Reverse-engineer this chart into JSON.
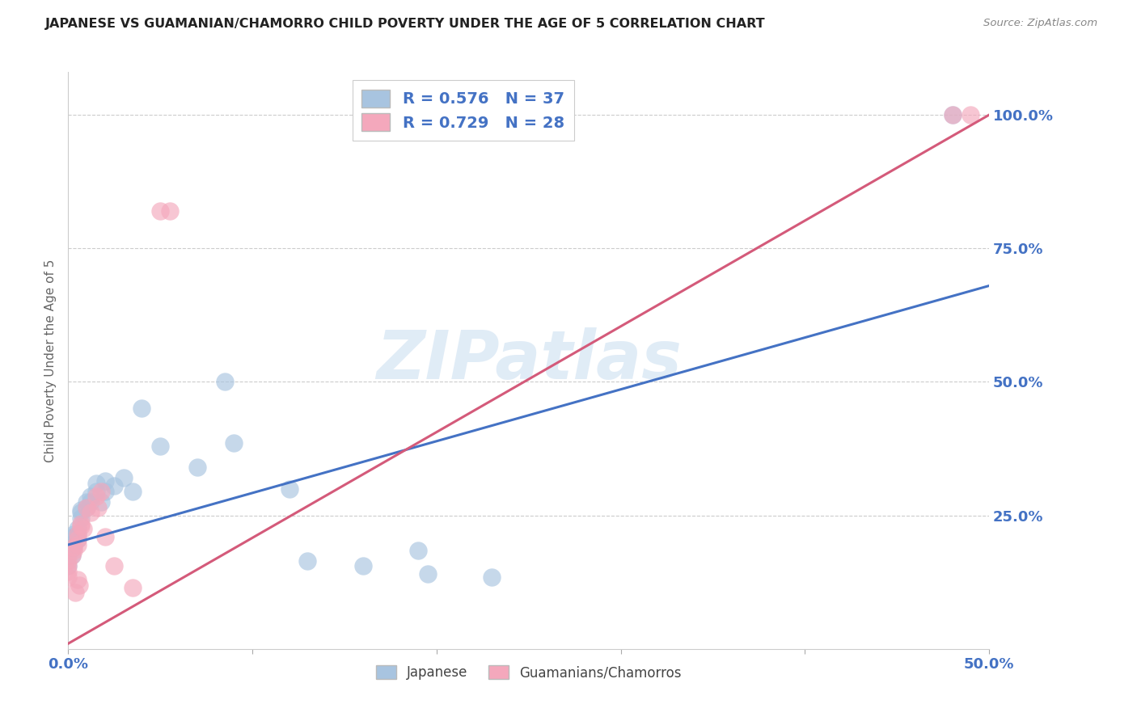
{
  "title": "JAPANESE VS GUAMANIAN/CHAMORRO CHILD POVERTY UNDER THE AGE OF 5 CORRELATION CHART",
  "source": "Source: ZipAtlas.com",
  "ylabel": "Child Poverty Under the Age of 5",
  "xlim": [
    0.0,
    0.5
  ],
  "ylim": [
    0.0,
    1.08
  ],
  "yticks": [
    0.25,
    0.5,
    0.75,
    1.0
  ],
  "ytick_labels": [
    "25.0%",
    "50.0%",
    "75.0%",
    "100.0%"
  ],
  "xticks": [
    0.0,
    0.1,
    0.2,
    0.3,
    0.4,
    0.5
  ],
  "xtick_labels": [
    "0.0%",
    "",
    "",
    "",
    "",
    "50.0%"
  ],
  "japanese_R": 0.576,
  "japanese_N": 37,
  "guam_R": 0.729,
  "guam_N": 28,
  "japanese_color": "#a8c4e0",
  "guam_color": "#f4a8bc",
  "japanese_line_color": "#4472c4",
  "guam_line_color": "#d45a7a",
  "legend_label_1": "Japanese",
  "legend_label_2": "Guamanians/Chamorros",
  "watermark_text": "ZIPatlas",
  "jp_line_x0": 0.0,
  "jp_line_y0": 0.195,
  "jp_line_x1": 0.5,
  "jp_line_y1": 0.68,
  "gm_line_x0": 0.0,
  "gm_line_y0": 0.01,
  "gm_line_x1": 0.5,
  "gm_line_y1": 1.0,
  "japanese_points": [
    [
      0.0,
      0.175
    ],
    [
      0.0,
      0.155
    ],
    [
      0.002,
      0.195
    ],
    [
      0.002,
      0.175
    ],
    [
      0.003,
      0.21
    ],
    [
      0.003,
      0.215
    ],
    [
      0.003,
      0.195
    ],
    [
      0.005,
      0.225
    ],
    [
      0.005,
      0.215
    ],
    [
      0.005,
      0.205
    ],
    [
      0.007,
      0.26
    ],
    [
      0.007,
      0.245
    ],
    [
      0.007,
      0.255
    ],
    [
      0.01,
      0.265
    ],
    [
      0.01,
      0.275
    ],
    [
      0.012,
      0.275
    ],
    [
      0.012,
      0.285
    ],
    [
      0.015,
      0.295
    ],
    [
      0.015,
      0.31
    ],
    [
      0.018,
      0.275
    ],
    [
      0.02,
      0.295
    ],
    [
      0.02,
      0.315
    ],
    [
      0.025,
      0.305
    ],
    [
      0.03,
      0.32
    ],
    [
      0.035,
      0.295
    ],
    [
      0.04,
      0.45
    ],
    [
      0.05,
      0.38
    ],
    [
      0.07,
      0.34
    ],
    [
      0.085,
      0.5
    ],
    [
      0.09,
      0.385
    ],
    [
      0.12,
      0.3
    ],
    [
      0.13,
      0.165
    ],
    [
      0.16,
      0.155
    ],
    [
      0.19,
      0.185
    ],
    [
      0.195,
      0.14
    ],
    [
      0.23,
      0.135
    ],
    [
      0.48,
      1.0
    ]
  ],
  "guam_points": [
    [
      0.0,
      0.155
    ],
    [
      0.0,
      0.165
    ],
    [
      0.0,
      0.145
    ],
    [
      0.0,
      0.135
    ],
    [
      0.002,
      0.175
    ],
    [
      0.003,
      0.185
    ],
    [
      0.003,
      0.19
    ],
    [
      0.005,
      0.205
    ],
    [
      0.005,
      0.215
    ],
    [
      0.005,
      0.195
    ],
    [
      0.007,
      0.23
    ],
    [
      0.007,
      0.235
    ],
    [
      0.008,
      0.225
    ],
    [
      0.01,
      0.265
    ],
    [
      0.012,
      0.255
    ],
    [
      0.015,
      0.285
    ],
    [
      0.016,
      0.265
    ],
    [
      0.018,
      0.295
    ],
    [
      0.02,
      0.21
    ],
    [
      0.025,
      0.155
    ],
    [
      0.035,
      0.115
    ],
    [
      0.05,
      0.82
    ],
    [
      0.055,
      0.82
    ],
    [
      0.48,
      1.0
    ],
    [
      0.49,
      1.0
    ],
    [
      0.005,
      0.13
    ],
    [
      0.006,
      0.12
    ],
    [
      0.004,
      0.105
    ]
  ]
}
